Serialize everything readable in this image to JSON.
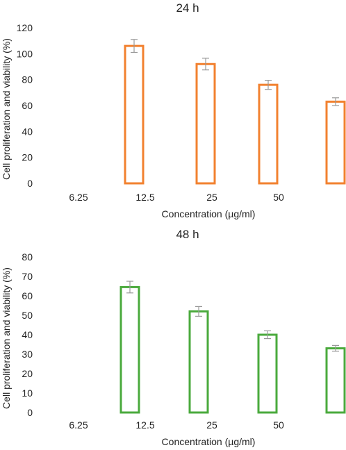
{
  "chart_data": [
    {
      "type": "bar",
      "title": "24 h",
      "xlabel": "Concentration (µg/ml)",
      "ylabel": "Cell proliferation and viability (%)",
      "x_tick_labels": [
        "6.25",
        "12.5",
        "25",
        "50"
      ],
      "ylim": [
        0,
        120
      ],
      "y_ticks": [
        "0",
        "20",
        "40",
        "60",
        "80",
        "100",
        "120"
      ],
      "values": [
        106,
        92,
        76,
        63
      ],
      "errors": [
        5,
        4.5,
        3.5,
        3
      ],
      "color": "#f2812f",
      "grid": false,
      "legend": "none"
    },
    {
      "type": "bar",
      "title": "48 h",
      "xlabel": "Concentration (µg/ml)",
      "ylabel": "Cell proliferation and viability (%)",
      "x_tick_labels": [
        "6.25",
        "12.5",
        "25",
        "50"
      ],
      "ylim": [
        0,
        80
      ],
      "y_ticks": [
        "0",
        "10",
        "20",
        "30",
        "40",
        "50",
        "60",
        "70",
        "80"
      ],
      "values": [
        64.5,
        52,
        40,
        33
      ],
      "errors": [
        3,
        2.5,
        2,
        1.5
      ],
      "color": "#4aaa3c",
      "grid": false,
      "legend": "none"
    }
  ]
}
